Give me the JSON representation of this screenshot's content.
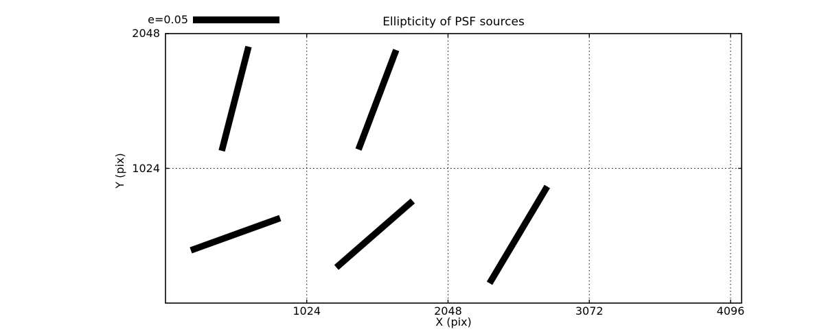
{
  "figure": {
    "title": "Ellipticity of PSF sources",
    "legend": {
      "label": "e=0.05"
    },
    "x_axis": {
      "label": "X (pix)",
      "tick_labels": [
        "1024",
        "2048",
        "3072",
        "4096"
      ]
    },
    "y_axis": {
      "label": "Y (pix)",
      "tick_labels": [
        "1024",
        "2048"
      ]
    }
  },
  "chart_data": {
    "type": "whisker",
    "title": "Ellipticity of PSF sources",
    "xlabel": "X (pix)",
    "ylabel": "Y (pix)",
    "xlim": [
      0,
      4176
    ],
    "ylim": [
      0,
      2048
    ],
    "xticks": [
      1024,
      2048,
      3072,
      4096
    ],
    "yticks": [
      1024,
      2048
    ],
    "grid": "dotted",
    "background_color": "#ffffff",
    "line_color": "#000000",
    "legend": {
      "label": "e=0.05",
      "e_value": 0.05,
      "bar_length_data_units": 627
    },
    "whiskers": [
      {
        "x1": 408,
        "y1": 1157,
        "x2": 602,
        "y2": 1949
      },
      {
        "x1": 1399,
        "y1": 1167,
        "x2": 1672,
        "y2": 1923
      },
      {
        "x1": 184,
        "y1": 401,
        "x2": 831,
        "y2": 646
      },
      {
        "x1": 1239,
        "y1": 271,
        "x2": 1792,
        "y2": 776
      },
      {
        "x1": 2349,
        "y1": 151,
        "x2": 2767,
        "y2": 886
      }
    ]
  }
}
